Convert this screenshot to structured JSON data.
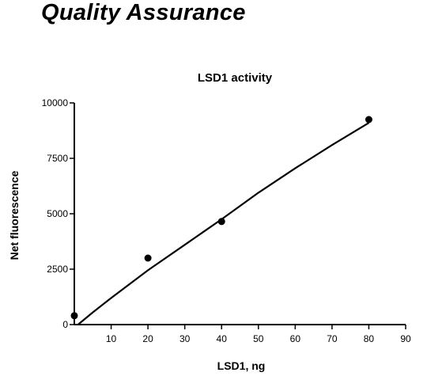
{
  "page_heading": "Quality Assurance",
  "chart_data": {
    "type": "scatter",
    "title": "LSD1 activity",
    "xlabel": "LSD1, ng",
    "ylabel": "Net fluorescence",
    "xlim": [
      0,
      90
    ],
    "ylim": [
      0,
      10000
    ],
    "x_ticks": [
      10,
      20,
      30,
      40,
      50,
      60,
      70,
      80,
      90
    ],
    "x_tick_labels": [
      "10",
      "20",
      "30",
      "40",
      "50",
      "60",
      "70",
      "80",
      "90"
    ],
    "y_ticks": [
      0,
      2500,
      5000,
      7500,
      10000
    ],
    "y_tick_labels": [
      "0",
      "2500",
      "5000",
      "7500",
      "10000"
    ],
    "grid": false,
    "series": [
      {
        "points": [
          {
            "x": 0,
            "y": 400
          },
          {
            "x": 20,
            "y": 3000
          },
          {
            "x": 40,
            "y": 4650
          },
          {
            "x": 80,
            "y": 9250
          }
        ]
      }
    ],
    "fit_curve": {
      "x": [
        1,
        5,
        10,
        20,
        30,
        40,
        50,
        60,
        70,
        80
      ],
      "y": [
        0,
        550,
        1200,
        2450,
        3600,
        4750,
        5950,
        7050,
        8100,
        9100
      ]
    }
  }
}
